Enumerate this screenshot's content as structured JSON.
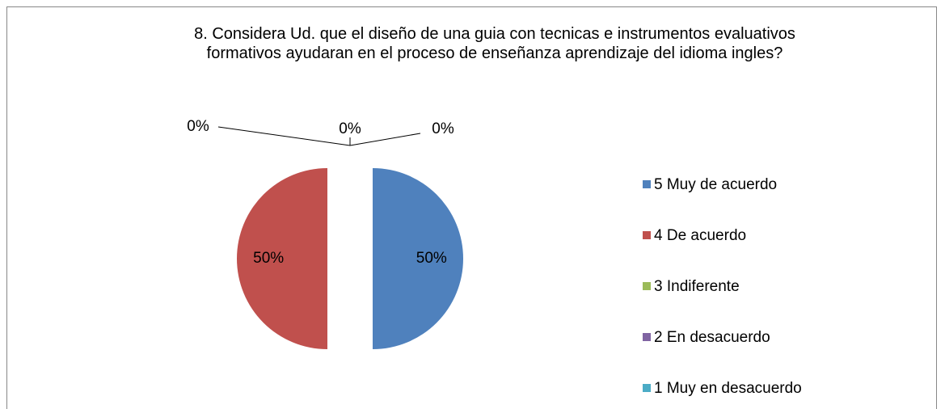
{
  "chart_data": {
    "type": "pie",
    "title": "8. Considera Ud. que  el diseño de una guia con tecnicas e instrumentos evaluativos formativos ayudaran en el proceso de enseñanza aprendizaje del idioma ingles?",
    "categories": [
      "5 Muy de acuerdo",
      "4 De acuerdo",
      "3 Indiferente",
      "2 En desacuerdo",
      "1 Muy en desacuerdo"
    ],
    "values": [
      50,
      50,
      0,
      0,
      0
    ],
    "value_labels": [
      "50%",
      "50%",
      "0%",
      "0%",
      "0%"
    ],
    "colors": [
      "#4f81bd",
      "#c0504d",
      "#9bbb59",
      "#8064a2",
      "#4bacc6"
    ],
    "legend": "right"
  }
}
